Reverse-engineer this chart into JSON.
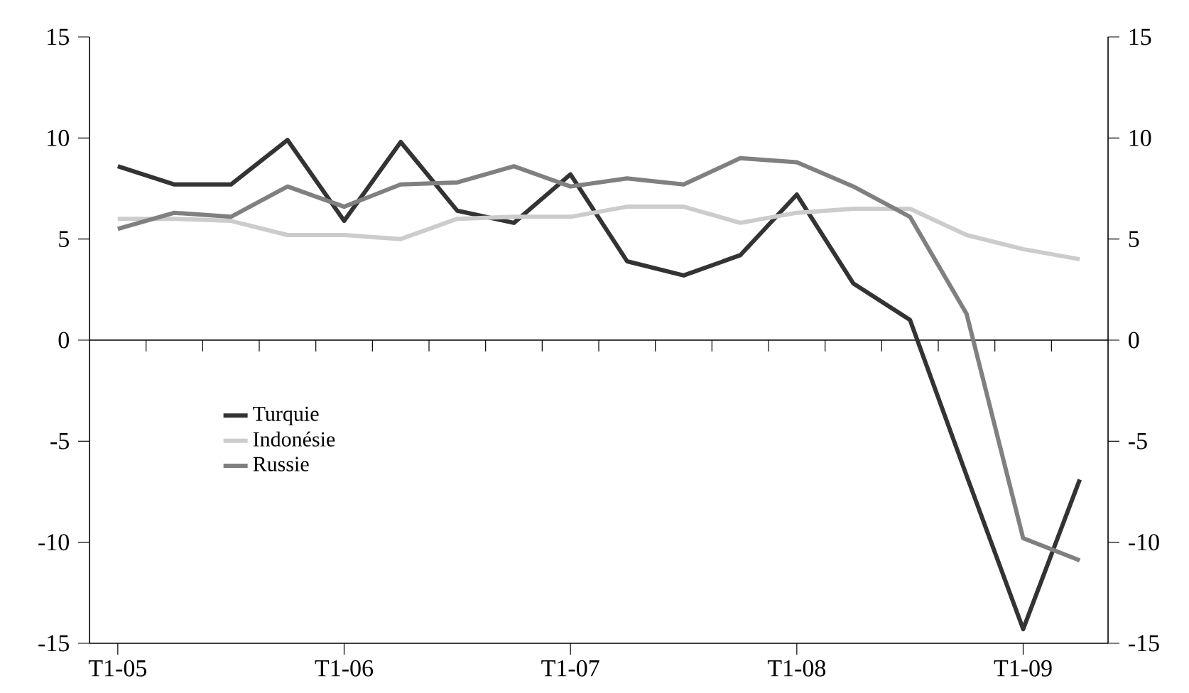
{
  "chart_data": {
    "type": "line",
    "categories": [
      "T1-05",
      null,
      null,
      null,
      "T1-06",
      null,
      null,
      null,
      "T1-07",
      null,
      null,
      null,
      "T1-08",
      null,
      null,
      null,
      "T1-09",
      null
    ],
    "series": [
      {
        "name": "Turquie",
        "color": "#333333",
        "values": [
          8.6,
          7.7,
          7.7,
          9.9,
          5.9,
          9.8,
          6.4,
          5.8,
          8.2,
          3.9,
          3.2,
          4.2,
          7.2,
          2.8,
          1.0,
          -6.7,
          -14.3,
          -6.9
        ]
      },
      {
        "name": "Indonésie",
        "color": "#cccccc",
        "values": [
          6.0,
          6.0,
          5.9,
          5.2,
          5.2,
          5.0,
          6.0,
          6.1,
          6.1,
          6.6,
          6.6,
          5.8,
          6.3,
          6.5,
          6.5,
          5.2,
          4.5,
          4.0
        ]
      },
      {
        "name": "Russie",
        "color": "#808080",
        "values": [
          5.5,
          6.3,
          6.1,
          7.6,
          6.6,
          7.7,
          7.8,
          8.6,
          7.6,
          8.0,
          7.7,
          9.0,
          8.8,
          7.6,
          6.1,
          1.3,
          -9.8,
          -10.9
        ]
      }
    ],
    "ylim": [
      -15,
      15
    ],
    "yticks": [
      -15,
      -10,
      -5,
      0,
      5,
      10,
      15
    ],
    "y2lim": [
      -15,
      15
    ],
    "y2ticks": [
      -15,
      -10,
      -5,
      0,
      5,
      10,
      15
    ],
    "ref_lines": [
      {
        "axis": "y",
        "value": 0
      }
    ],
    "legend": "left",
    "grid": false,
    "marker": "none",
    "line_style": "solid"
  }
}
